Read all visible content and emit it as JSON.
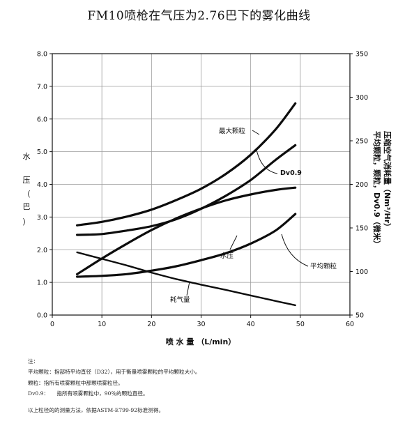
{
  "chart_data": {
    "type": "line",
    "title": "FM10喷枪在气压为2.76巴下的雾化曲线",
    "xlabel": "喷 水 量 （L/min）",
    "ylabel_left": [
      "水",
      "压",
      "（",
      "巴",
      "）"
    ],
    "ylabel_right_1": "压缩空气消耗量（Nm³/Hr）",
    "ylabel_right_2": "平均颗粒，颗粒，Dv0.9（微米）",
    "x_ticks": [
      "0",
      "10",
      "20",
      "30",
      "40",
      "50",
      "60"
    ],
    "y_left_ticks": [
      "0.0",
      "1.0",
      "2.0",
      "3.0",
      "4.0",
      "5.0",
      "6.0",
      "7.0",
      "8.0"
    ],
    "y_right_ticks": [
      "50",
      "100",
      "150",
      "200",
      "250",
      "300",
      "350"
    ],
    "xlim": [
      0,
      60
    ],
    "ylim_left": [
      0,
      8
    ],
    "ylim_right": [
      50,
      350
    ],
    "grid": true,
    "series": [
      {
        "name": "最大颗粒",
        "axis": "right",
        "x": [
          5,
          10,
          15,
          20,
          25,
          30,
          35,
          40,
          45,
          49
        ],
        "y": [
          153,
          157,
          163,
          171,
          182,
          195,
          212,
          234,
          263,
          293
        ]
      },
      {
        "name": "Dv0.9",
        "axis": "right",
        "x": [
          5,
          10,
          15,
          20,
          25,
          30,
          35,
          40,
          45,
          49
        ],
        "y": [
          142,
          143,
          147,
          152,
          160,
          172,
          187,
          205,
          228,
          245
        ]
      },
      {
        "name": "水压",
        "axis": "left",
        "x": [
          5,
          10,
          15,
          20,
          25,
          30,
          35,
          40,
          45,
          49
        ],
        "y": [
          1.25,
          1.73,
          2.18,
          2.6,
          2.96,
          3.26,
          3.51,
          3.69,
          3.83,
          3.9
        ]
      },
      {
        "name": "平均颗粒",
        "axis": "right",
        "x": [
          5,
          10,
          15,
          20,
          25,
          30,
          35,
          40,
          45,
          49
        ],
        "y": [
          94,
          95,
          97,
          101,
          106,
          113,
          121,
          132,
          147,
          166
        ]
      },
      {
        "name": "耗气量",
        "axis": "left",
        "x": [
          5,
          10,
          15,
          20,
          25,
          30,
          35,
          40,
          45,
          49
        ],
        "y": [
          1.92,
          1.72,
          1.52,
          1.3,
          1.1,
          0.93,
          0.77,
          0.6,
          0.43,
          0.3
        ]
      }
    ],
    "annotations": [
      "最大颗粒",
      "Dv0.9",
      "水压",
      "平均颗粒",
      "耗气量"
    ]
  },
  "notes": {
    "heading": "注：",
    "line1": "平均颗粒：指部特平均直径（D32），用于衡量喷雾颗粒的平均颗粒大小。",
    "line2": "颗粒：指所有喷雾颗粒中那颗喷雾粒径。",
    "line3": "Dv0.9：　　指所有喷雾颗粒中，90％的颗粒直径。",
    "line4": "以上粒径的的测量方法，依据ASTM-E799-92标准测得。"
  }
}
